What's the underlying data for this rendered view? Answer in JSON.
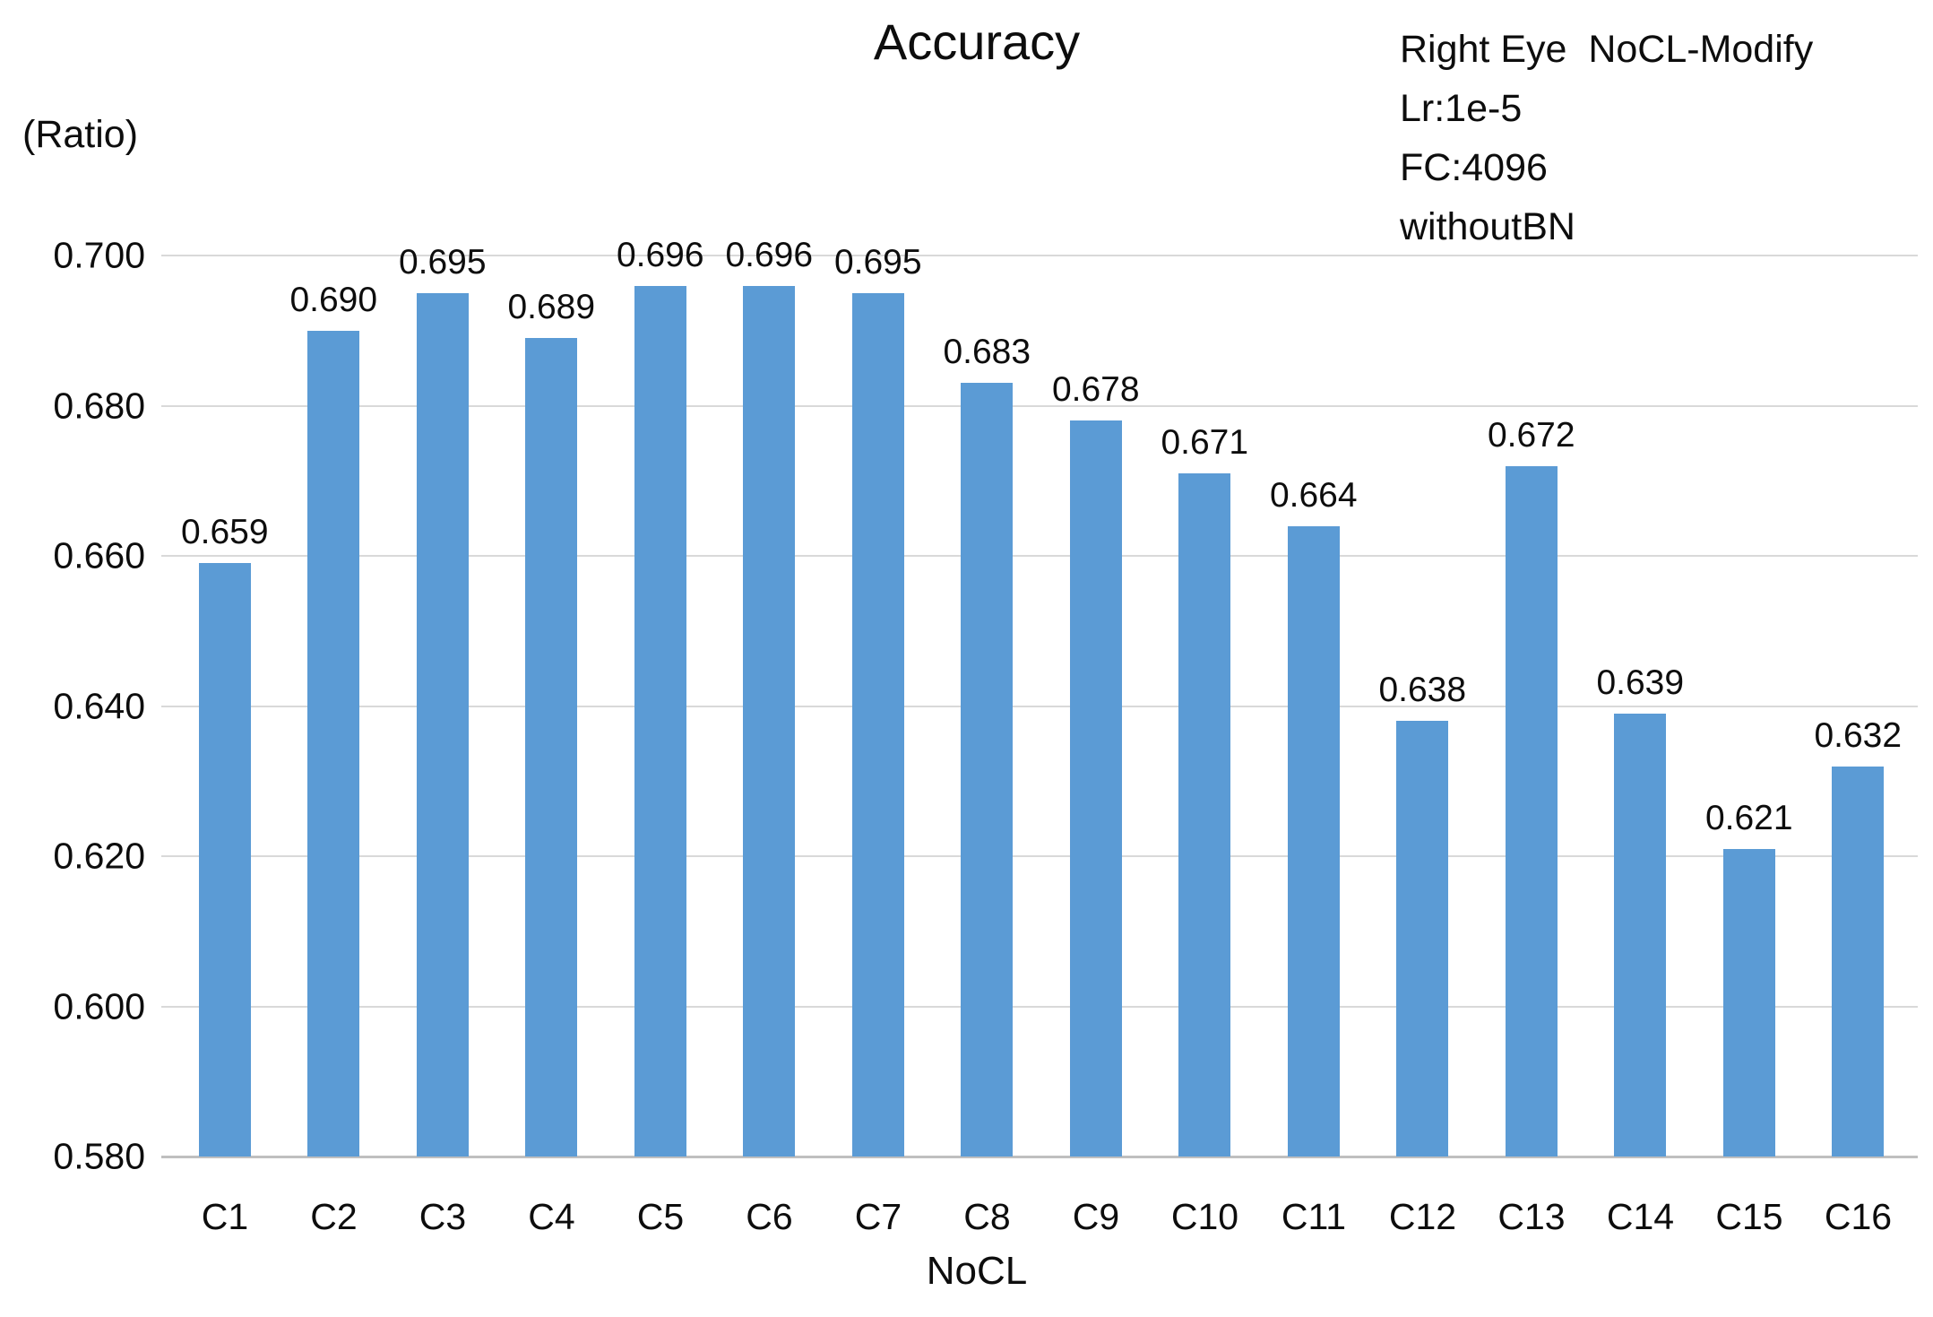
{
  "chart_data": {
    "type": "bar",
    "title": "Accuracy",
    "annotation_lines": [
      "Right Eye  NoCL-Modify",
      "Lr:1e-5",
      "FC:4096",
      "withoutBN"
    ],
    "ylabel": "(Ratio)",
    "xlabel": "NoCL",
    "categories": [
      "C1",
      "C2",
      "C3",
      "C4",
      "C5",
      "C6",
      "C7",
      "C8",
      "C9",
      "C10",
      "C11",
      "C12",
      "C13",
      "C14",
      "C15",
      "C16"
    ],
    "values": [
      0.659,
      0.69,
      0.695,
      0.689,
      0.696,
      0.696,
      0.695,
      0.683,
      0.678,
      0.671,
      0.664,
      0.638,
      0.672,
      0.639,
      0.621,
      0.632
    ],
    "value_labels": [
      "0.659",
      "0.690",
      "0.695",
      "0.689",
      "0.696",
      "0.696",
      "0.695",
      "0.683",
      "0.678",
      "0.671",
      "0.664",
      "0.638",
      "0.672",
      "0.639",
      "0.621",
      "0.632"
    ],
    "ylim": [
      0.58,
      0.7
    ],
    "ytick_labels": [
      "0.700",
      "0.680",
      "0.660",
      "0.640",
      "0.620",
      "0.600",
      "0.580"
    ],
    "grid": true,
    "legend_position": "none",
    "bar_color": "#5b9bd5",
    "gridline_color": "#d9d9d9",
    "axis_line_color": "#bfbfbf"
  }
}
